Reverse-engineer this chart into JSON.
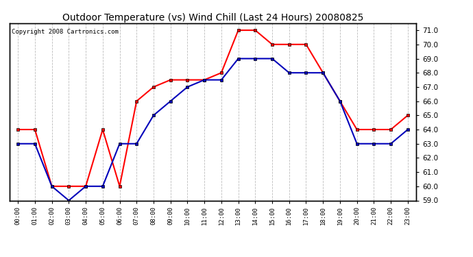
{
  "title": "Outdoor Temperature (vs) Wind Chill (Last 24 Hours) 20080825",
  "copyright": "Copyright 2008 Cartronics.com",
  "hours": [
    0,
    1,
    2,
    3,
    4,
    5,
    6,
    7,
    8,
    9,
    10,
    11,
    12,
    13,
    14,
    15,
    16,
    17,
    18,
    19,
    20,
    21,
    22,
    23
  ],
  "x_labels": [
    "00:00",
    "01:00",
    "02:00",
    "03:00",
    "04:00",
    "05:00",
    "06:00",
    "07:00",
    "08:00",
    "09:00",
    "10:00",
    "11:00",
    "12:00",
    "13:00",
    "14:00",
    "15:00",
    "16:00",
    "17:00",
    "18:00",
    "19:00",
    "20:00",
    "21:00",
    "22:00",
    "23:00"
  ],
  "temp_red": [
    64.0,
    64.0,
    60.0,
    60.0,
    60.0,
    64.0,
    60.0,
    66.0,
    67.0,
    67.5,
    67.5,
    67.5,
    68.0,
    71.0,
    71.0,
    70.0,
    70.0,
    70.0,
    68.0,
    66.0,
    64.0,
    64.0,
    64.0,
    65.0
  ],
  "wind_blue": [
    63.0,
    63.0,
    60.0,
    59.0,
    60.0,
    60.0,
    63.0,
    63.0,
    65.0,
    66.0,
    67.0,
    67.5,
    67.5,
    69.0,
    69.0,
    69.0,
    68.0,
    68.0,
    68.0,
    66.0,
    63.0,
    63.0,
    63.0,
    64.0
  ],
  "red_color": "#ff0000",
  "blue_color": "#0000bb",
  "ylim_min": 59.0,
  "ylim_max": 71.5,
  "yticks": [
    59.0,
    60.0,
    61.0,
    62.0,
    63.0,
    64.0,
    65.0,
    66.0,
    67.0,
    68.0,
    69.0,
    70.0,
    71.0
  ],
  "bg_color": "#ffffff",
  "grid_color": "#bbbbbb",
  "title_fontsize": 10,
  "copyright_fontsize": 6.5,
  "marker": "s",
  "marker_size": 3.0,
  "line_width": 1.5
}
